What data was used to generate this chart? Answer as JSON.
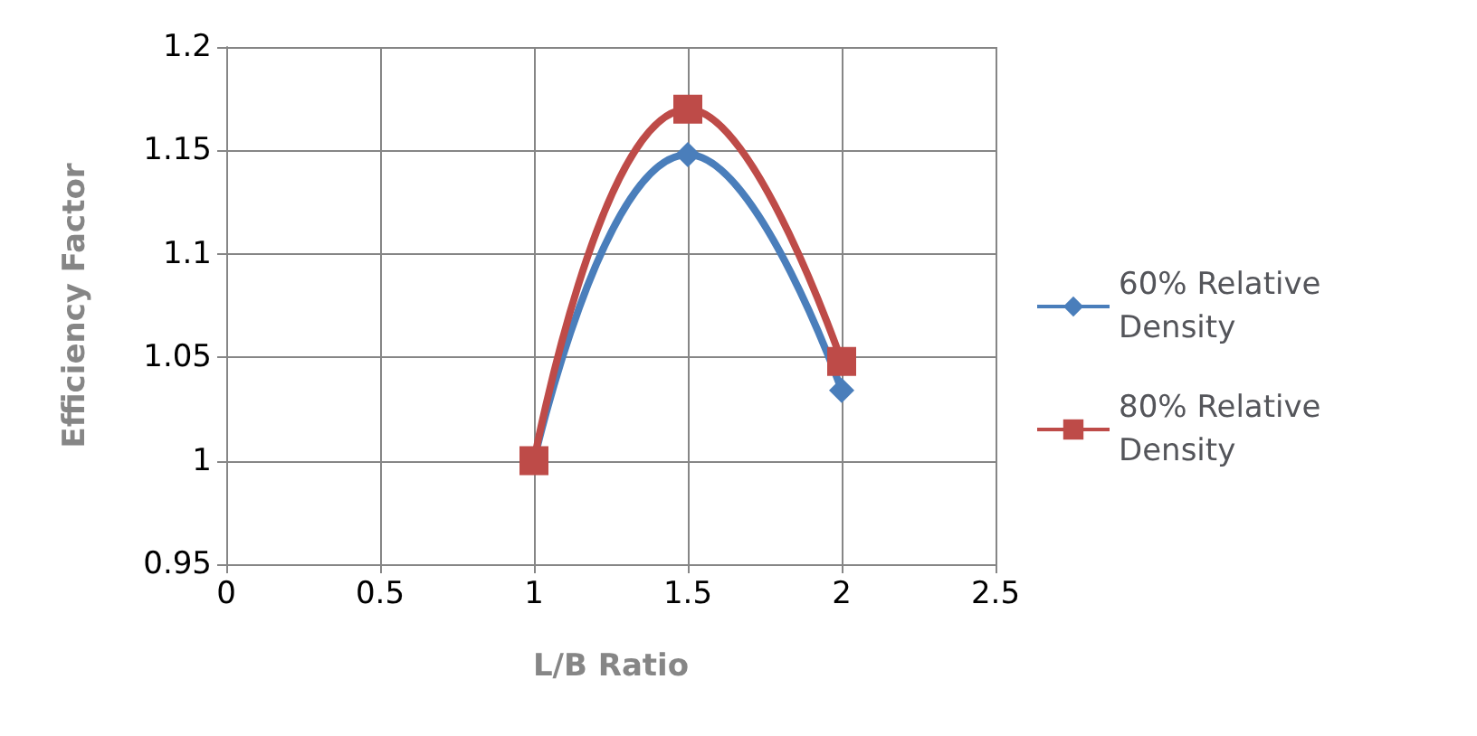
{
  "chart_data": {
    "type": "line",
    "xlabel": "L/B Ratio",
    "ylabel": "Efficiency Factor",
    "x": [
      1,
      1.5,
      2
    ],
    "series": [
      {
        "name": "60% Relative Density",
        "color": "#4a7ebb",
        "marker": "diamond",
        "values": [
          1,
          1.148,
          1.034
        ]
      },
      {
        "name": "80% Relative Density",
        "color": "#be4b48",
        "marker": "square",
        "values": [
          1,
          1.17,
          1.048
        ]
      }
    ],
    "xlim": [
      0,
      2.5
    ],
    "xticks": [
      0,
      0.5,
      1,
      1.5,
      2,
      2.5
    ],
    "ylim": [
      0.95,
      1.2
    ],
    "yticks": [
      0.95,
      1,
      1.05,
      1.1,
      1.15,
      1.2
    ],
    "grid": true,
    "legend": "right",
    "line_style": "solid"
  }
}
